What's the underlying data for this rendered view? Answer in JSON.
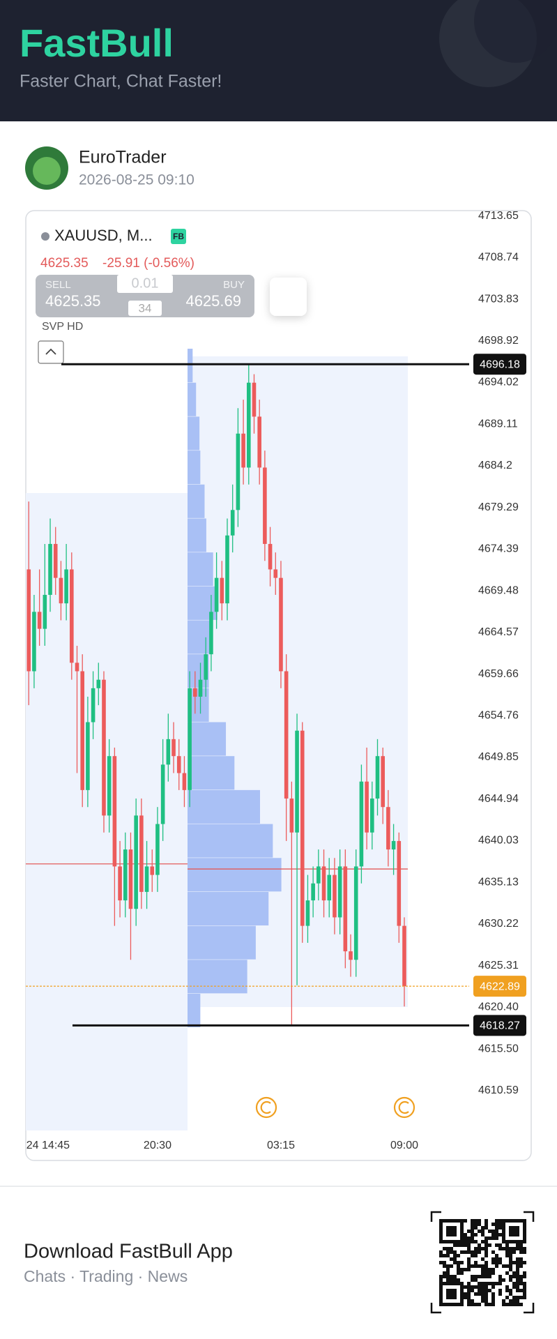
{
  "header": {
    "logo": "FastBull",
    "tagline": "Faster Chart, Chat Faster!"
  },
  "post": {
    "author": "EuroTrader",
    "time": "2026-08-25 09:10"
  },
  "quote": {
    "symbol": "XAUUSD, M...",
    "badge": "FB",
    "price": "4625.35",
    "change": "-25.91 (-0.56%)",
    "sell_label": "SELL",
    "sell_price": "4625.35",
    "lot": "0.01",
    "spread": "34",
    "buy_label": "BUY",
    "buy_price": "4625.69",
    "indicator": "SVP HD"
  },
  "chart_data": {
    "type": "candlestick",
    "categories": [
      null,
      "24 14:45",
      null,
      null,
      null,
      null,
      null,
      null,
      null,
      null,
      null,
      null,
      null,
      null,
      null,
      null,
      null,
      null,
      null,
      null,
      null,
      null,
      null,
      null,
      "20:30",
      null,
      null,
      null,
      null,
      null,
      null,
      null,
      null,
      null,
      null,
      null,
      null,
      null,
      null,
      null,
      null,
      null,
      null,
      null,
      null,
      null,
      null,
      "03:15",
      null,
      null,
      null,
      null,
      null,
      null,
      null,
      null,
      null,
      null,
      null,
      null,
      null,
      null,
      null,
      null,
      null,
      null,
      null,
      null,
      null,
      null,
      "09:00"
    ],
    "open": [
      4672,
      4660,
      4667,
      4665,
      4669,
      4675,
      4671,
      4668,
      4672,
      4661,
      4660,
      4646,
      4654,
      4658,
      4659,
      4643,
      4650,
      4637,
      4633,
      4639,
      4632,
      4643,
      4634,
      4637,
      4636,
      4642,
      4649,
      4652,
      4650,
      4648,
      4646,
      4658,
      4657,
      4659,
      4662,
      4667,
      4671,
      4668,
      4676,
      4679,
      4688,
      4684,
      4694,
      4690,
      4684,
      4675,
      4672,
      4671,
      4660,
      4645,
      4641,
      4653,
      4630,
      4633,
      4635,
      4637,
      4633,
      4636,
      4631,
      4637,
      4627,
      4626,
      4637,
      4647,
      4641,
      4645,
      4650,
      4644,
      4639,
      4640,
      4630
    ],
    "high": [
      4680,
      4669,
      4672,
      4675,
      4678,
      4677,
      4673,
      4675,
      4674,
      4663,
      4662,
      4657,
      4660,
      4661,
      4660,
      4652,
      4651,
      4640,
      4641,
      4641,
      4645,
      4645,
      4640,
      4639,
      4644,
      4652,
      4655,
      4654,
      4652,
      4650,
      4660,
      4660,
      4661,
      4664,
      4669,
      4674,
      4673,
      4678,
      4682,
      4691,
      4692,
      4696.18,
      4695,
      4692,
      4686,
      4677,
      4674,
      4673,
      4662,
      4647,
      4655,
      4654,
      4636,
      4637,
      4639,
      4639,
      4638,
      4638,
      4639,
      4639,
      4629,
      4639,
      4649,
      4651,
      4647,
      4652,
      4651,
      4646,
      4642,
      4641,
      4631
    ],
    "low": [
      4656,
      4658,
      4663,
      4663,
      4667,
      4669,
      4666,
      4666,
      4659,
      4648,
      4644,
      4644,
      4652,
      4656,
      4641,
      4641,
      4630,
      4631,
      4631,
      4626,
      4630,
      4632,
      4632,
      4634,
      4634,
      4640,
      4647,
      4648,
      4646,
      4644,
      4644,
      4655,
      4655,
      4657,
      4660,
      4665,
      4666,
      4666,
      4674,
      4677,
      4682,
      4682,
      4688,
      4682,
      4673,
      4670,
      4669,
      4658,
      4640,
      4618.27,
      4623,
      4628,
      4628,
      4631,
      4633,
      4631,
      4631,
      4629,
      4629,
      4625,
      4624,
      4624,
      4635,
      4639,
      4639,
      4643,
      4642,
      4637,
      4636,
      4628,
      4620.5
    ],
    "close": [
      4660,
      4667,
      4665,
      4669,
      4675,
      4671,
      4668,
      4672,
      4661,
      4660,
      4646,
      4654,
      4658,
      4659,
      4643,
      4650,
      4637,
      4633,
      4639,
      4632,
      4643,
      4634,
      4637,
      4636,
      4642,
      4649,
      4652,
      4650,
      4648,
      4646,
      4658,
      4657,
      4659,
      4662,
      4667,
      4671,
      4668,
      4676,
      4679,
      4688,
      4684,
      4694,
      4690,
      4684,
      4675,
      4672,
      4671,
      4660,
      4645,
      4641,
      4653,
      4630,
      4633,
      4635,
      4637,
      4633,
      4636,
      4631,
      4637,
      4627,
      4626,
      4637,
      4647,
      4641,
      4645,
      4650,
      4644,
      4639,
      4640,
      4630,
      4622.89
    ],
    "up_color": "#1fbf82",
    "down_color": "#ec5b5b",
    "ylim": [
      4610.59,
      4713.65
    ],
    "yticks": [
      4713.65,
      4708.74,
      4703.83,
      4698.92,
      4694.02,
      4689.11,
      4684.2,
      4679.29,
      4674.39,
      4669.48,
      4664.57,
      4659.66,
      4654.76,
      4649.85,
      4644.94,
      4640.03,
      4635.13,
      4630.22,
      4625.31,
      {
        "value": 4620.4,
        "label": "4620.40"
      },
      {
        "value": 4615.5,
        "label": "4615.50"
      },
      4610.59
    ],
    "max_price": 4696.18,
    "min_price": 4618.27,
    "last_price": 4622.89,
    "poc_levels": [
      4637.3,
      4636.7
    ],
    "volume_profile": {
      "bins": [
        4618,
        4622,
        4626,
        4630,
        4634,
        4638,
        4642,
        4646,
        4650,
        4654,
        4658,
        4662,
        4666,
        4670,
        4674,
        4678,
        4682,
        4686,
        4690,
        4694,
        4698
      ],
      "values": [
        15,
        70,
        80,
        95,
        110,
        100,
        85,
        55,
        45,
        25,
        25,
        28,
        35,
        30,
        22,
        20,
        15,
        14,
        10,
        6
      ],
      "color": "#a9c0f5"
    }
  },
  "footer": {
    "title": "Download FastBull App",
    "subtitle": "Chats · Trading · News"
  }
}
